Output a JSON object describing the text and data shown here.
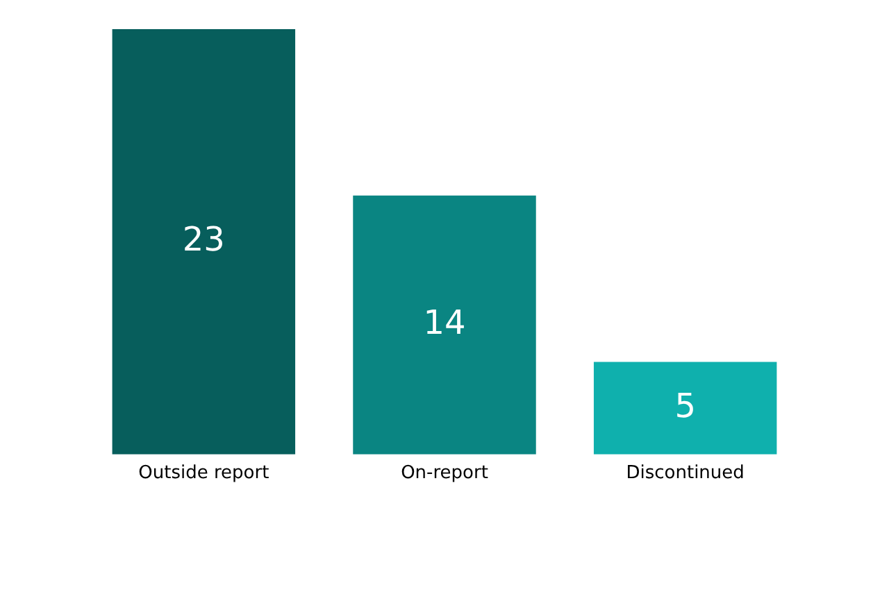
{
  "chart_data": {
    "type": "bar",
    "categories": [
      "Outside report",
      "On-report",
      "Discontinued"
    ],
    "values": [
      23,
      14,
      5
    ],
    "colors": [
      "#075e5c",
      "#0a8582",
      "#0fb0ad"
    ],
    "data_labels": true,
    "grid": false,
    "legend": false
  }
}
